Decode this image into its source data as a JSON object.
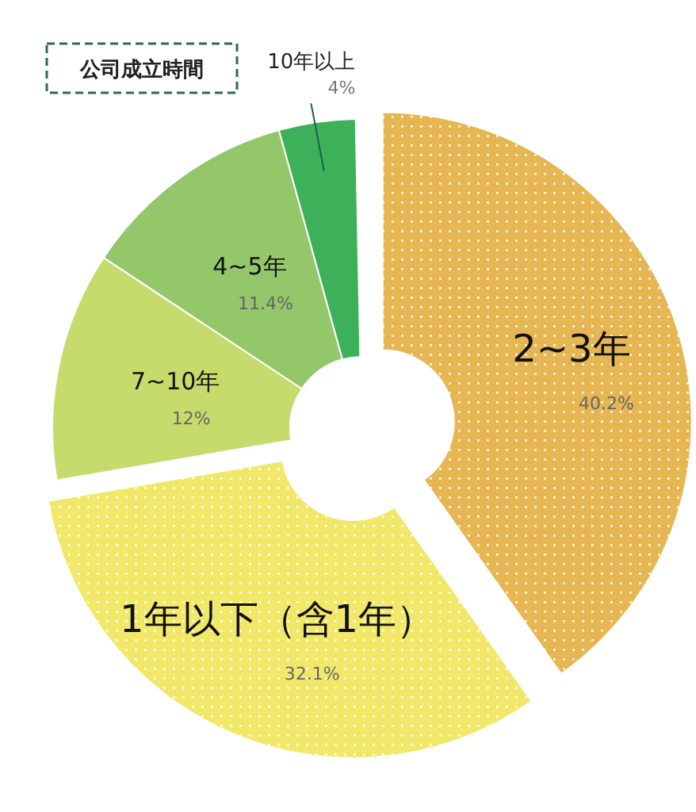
{
  "chart_data": {
    "type": "donut",
    "title": "公司成立時間",
    "categories": [
      "2~3年",
      "1年以下（含1年）",
      "7~10年",
      "4~5年",
      "10年以上"
    ],
    "values": [
      40.2,
      32.1,
      12,
      11.4,
      4
    ],
    "value_labels": [
      "40.2%",
      "32.1%",
      "12%",
      "11.4%",
      "4%"
    ],
    "colors": [
      "#e6b652",
      "#f1e86a",
      "#c5dc6c",
      "#93c76a",
      "#3db15a"
    ]
  }
}
